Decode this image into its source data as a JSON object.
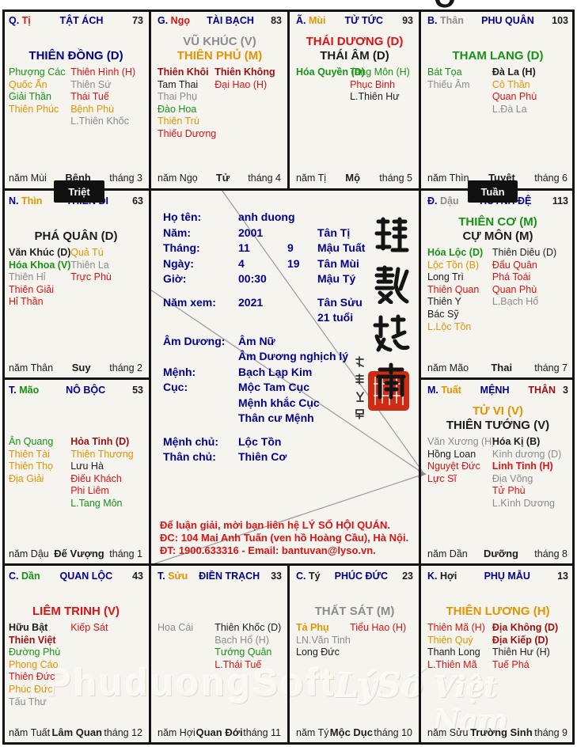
{
  "colors": {
    "navy": "#00008B",
    "red": "#DE1212",
    "darkred": "#9B1010",
    "orange": "#E39400",
    "green": "#169316",
    "gray": "#8C8C8C",
    "black": "#1C1C1C"
  },
  "badges": {
    "triet": "Triệt",
    "tuan": "Tuần"
  },
  "watermarks": {
    "left": "PhuduongSoft",
    "mid": "LýSố",
    "right": "Việt Nam"
  },
  "center": {
    "info_rows": [
      {
        "label": "Họ tên:",
        "value": "anh duong",
        "extra": "",
        "canchi": ""
      },
      {
        "label": "Năm:",
        "value": "2001",
        "extra": "",
        "canchi": "Tân Tị"
      },
      {
        "label": "Tháng:",
        "value": "11",
        "extra": "9",
        "canchi": "Mậu Tuất"
      },
      {
        "label": "Ngày:",
        "value": "4",
        "extra": "19",
        "canchi": "Tân Mùi"
      },
      {
        "label": "Giờ:",
        "value": "00:30",
        "extra": "",
        "canchi": "Mậu Tý"
      },
      {
        "label": "Năm xem:",
        "value": "2021",
        "extra": "",
        "canchi": "Tân Sửu",
        "gap": true
      },
      {
        "label": "",
        "value": "",
        "extra": "",
        "canchi": "21 tuổi"
      },
      {
        "label": "Âm Dương:",
        "value": "Âm Nữ",
        "extra": "",
        "canchi": "",
        "gap": true
      },
      {
        "label": "",
        "value": "Âm Dương nghịch lý",
        "extra": "",
        "canchi": ""
      },
      {
        "label": "Mệnh:",
        "value": "Bạch Lạp Kim",
        "extra": "",
        "canchi": ""
      },
      {
        "label": "Cục:",
        "value": "Mộc Tam Cục",
        "extra": "",
        "canchi": ""
      },
      {
        "label": "",
        "value": "Mệnh khắc Cục",
        "extra": "",
        "canchi": ""
      },
      {
        "label": "",
        "value": "Thân cư Mệnh",
        "extra": "",
        "canchi": ""
      },
      {
        "label": "Mệnh chủ:",
        "value": "Lộc Tồn",
        "extra": "",
        "canchi": "",
        "gap": true
      },
      {
        "label": "Thân chủ:",
        "value": "Thiên Cơ",
        "extra": "",
        "canchi": ""
      }
    ],
    "notice_lines": [
      "Để luận giải, mời bạn liên hệ LÝ SỐ HỘI QUÁN.",
      "ĐC: 104 Mai Anh Tuấn (ven hồ Hoàng Cầu), Hà Nội.",
      "ĐT: 1900.633316 - Email: bantuvan@lyso.vn."
    ],
    "calligraphy_chars": [
      "理",
      "數",
      "越",
      "南"
    ],
    "seal_side_chars": [
      "扶",
      "董",
      "公",
      "司"
    ]
  },
  "palaces": [
    {
      "stem": "Q.",
      "branch": "Tị",
      "branch_color": "red",
      "palace": "TẬT ÁCH",
      "number": "73",
      "main_stars": [
        {
          "t": "THIÊN ĐỒNG (D)",
          "c": "navy"
        }
      ],
      "left": [
        {
          "t": "Phượng Các",
          "c": "green"
        },
        {
          "t": "Quốc Ấn",
          "c": "orange"
        },
        {
          "t": "Giải Thần",
          "c": "green"
        },
        {
          "t": "Thiên Phúc",
          "c": "orange"
        }
      ],
      "right": [
        {
          "t": "Thiên Hình (H)",
          "c": "red"
        },
        {
          "t": "Thiên Sứ",
          "c": "gray"
        },
        {
          "t": "Thái Tuế",
          "c": "red"
        },
        {
          "t": "Bệnh Phù",
          "c": "orange"
        },
        {
          "t": "L.Thiên Khốc",
          "c": "gray"
        }
      ],
      "year": "năm Mùi",
      "state": "Bệnh",
      "month": "tháng 3"
    },
    {
      "stem": "G.",
      "branch": "Ngọ",
      "branch_color": "red",
      "palace": "TÀI BẠCH",
      "number": "83",
      "main_stars": [
        {
          "t": "VŨ KHÚC (V)",
          "c": "gray"
        },
        {
          "t": "THIÊN PHỦ (M)",
          "c": "orange"
        }
      ],
      "left": [
        {
          "t": "Thiên Khôi",
          "c": "darkred",
          "b": 1
        },
        {
          "t": "Tam Thai",
          "c": "black"
        },
        {
          "t": "Thai Phụ",
          "c": "gray"
        },
        {
          "t": "Đào Hoa",
          "c": "green"
        },
        {
          "t": "Thiên Trù",
          "c": "orange"
        },
        {
          "t": "Thiếu Dương",
          "c": "red"
        }
      ],
      "right": [
        {
          "t": "Thiên Không",
          "c": "darkred",
          "b": 1
        },
        {
          "t": "Đại Hao (H)",
          "c": "red"
        }
      ],
      "year": "năm Ngọ",
      "state": "Tử",
      "month": "tháng 4"
    },
    {
      "stem": "Ã.",
      "branch": "Mùi",
      "branch_color": "orange",
      "palace": "TỬ TỨC",
      "number": "93",
      "main_stars": [
        {
          "t": "THÁI DƯƠNG (D)",
          "c": "red"
        },
        {
          "t": "THÁI ÂM (D)",
          "c": "black"
        }
      ],
      "left": [
        {
          "t": "Hóa Quyền (D)",
          "c": "green",
          "b": 1
        }
      ],
      "right": [
        {
          "t": "Tang Môn (H)",
          "c": "green"
        },
        {
          "t": "Phục Binh",
          "c": "red"
        },
        {
          "t": "L.Thiên Hư",
          "c": "black"
        }
      ],
      "year": "năm Tị",
      "state": "Mộ",
      "month": "tháng 5"
    },
    {
      "stem": "B.",
      "branch": "Thân",
      "branch_color": "gray",
      "palace": "PHU QUÂN",
      "number": "103",
      "main_stars": [
        {
          "t": "THAM LANG (D)",
          "c": "green"
        }
      ],
      "left": [
        {
          "t": "Bát Tọa",
          "c": "green"
        },
        {
          "t": "Thiếu Âm",
          "c": "gray"
        }
      ],
      "right": [
        {
          "t": "Đà La (H)",
          "c": "black",
          "b": 1
        },
        {
          "t": "Cô Thần",
          "c": "orange"
        },
        {
          "t": "Quan Phù",
          "c": "red"
        },
        {
          "t": "L.Đà La",
          "c": "gray"
        }
      ],
      "year": "năm Thìn",
      "state": "Tuyệt",
      "month": "tháng 6"
    },
    {
      "stem": "N.",
      "branch": "Thìn",
      "branch_color": "orange",
      "palace": "THIÊN DI",
      "number": "63",
      "main_stars": [
        {
          "t": "PHÁ QUÂN (D)",
          "c": "black"
        }
      ],
      "left": [
        {
          "t": "Văn Khúc (D)",
          "c": "black",
          "b": 1
        },
        {
          "t": "Hóa Khoa (V)",
          "c": "green",
          "b": 1
        },
        {
          "t": "Thiên Hỉ",
          "c": "gray"
        },
        {
          "t": "Thiên Giải",
          "c": "red"
        },
        {
          "t": "Hỉ Thần",
          "c": "red"
        }
      ],
      "right": [
        {
          "t": "Quả Tú",
          "c": "orange"
        },
        {
          "t": "Thiên La",
          "c": "gray"
        },
        {
          "t": "Trực Phù",
          "c": "red"
        }
      ],
      "year": "năm Thân",
      "state": "Suy",
      "month": "tháng 2"
    },
    {
      "stem": "Đ.",
      "branch": "Dậu",
      "branch_color": "gray",
      "palace": "HUYNH ĐỆ",
      "number": "113",
      "main_stars": [
        {
          "t": "THIÊN CƠ (M)",
          "c": "green"
        },
        {
          "t": "CỰ MÔN (M)",
          "c": "black"
        }
      ],
      "left": [
        {
          "t": "Hóa Lộc (D)",
          "c": "green",
          "b": 1
        },
        {
          "t": "Lộc Tồn (B)",
          "c": "orange"
        },
        {
          "t": "Long Trì",
          "c": "black"
        },
        {
          "t": "Thiên Quan",
          "c": "red"
        },
        {
          "t": "Thiên Y",
          "c": "black"
        },
        {
          "t": "Bác Sỹ",
          "c": "black"
        },
        {
          "t": "L.Lộc Tồn",
          "c": "orange"
        }
      ],
      "right": [
        {
          "t": "Thiên Diêu (D)",
          "c": "black"
        },
        {
          "t": "Đẩu Quân",
          "c": "red"
        },
        {
          "t": "Phá Toái",
          "c": "red"
        },
        {
          "t": "Quan Phù",
          "c": "red"
        },
        {
          "t": "L.Bạch Hổ",
          "c": "gray"
        }
      ],
      "year": "năm Mão",
      "state": "Thai",
      "month": "tháng 7"
    },
    {
      "stem": "T.",
      "branch": "Mão",
      "branch_color": "green",
      "palace": "NÔ BỘC",
      "number": "53",
      "main_stars": [],
      "left": [
        {
          "t": "Ân Quang",
          "c": "green"
        },
        {
          "t": "Thiên Tài",
          "c": "orange"
        },
        {
          "t": "Thiên Thọ",
          "c": "orange"
        },
        {
          "t": "Địa Giải",
          "c": "orange"
        }
      ],
      "right": [
        {
          "t": "Hỏa Tinh (D)",
          "c": "darkred",
          "b": 1
        },
        {
          "t": "Thiên Thương",
          "c": "orange"
        },
        {
          "t": "Lưu Hà",
          "c": "black"
        },
        {
          "t": "Điếu Khách",
          "c": "red"
        },
        {
          "t": "Phi Liêm",
          "c": "red"
        },
        {
          "t": "L.Tang Môn",
          "c": "green"
        }
      ],
      "year": "năm Dậu",
      "state": "Đế Vượng",
      "month": "tháng 1"
    },
    {
      "stem": "M.",
      "branch": "Tuất",
      "branch_color": "orange",
      "palace": "MỆNH",
      "palace2": "THÂN",
      "number": "3",
      "main_stars": [
        {
          "t": "TỬ VI (V)",
          "c": "orange"
        },
        {
          "t": "THIÊN TƯỚNG (V)",
          "c": "black"
        }
      ],
      "left": [
        {
          "t": "Văn Xương (H)",
          "c": "gray"
        },
        {
          "t": "Hồng Loan",
          "c": "black"
        },
        {
          "t": "Nguyệt Đức",
          "c": "red"
        },
        {
          "t": "Lực Sĩ",
          "c": "red"
        }
      ],
      "right": [
        {
          "t": "Hóa Kị (B)",
          "c": "black",
          "b": 1
        },
        {
          "t": "Kình dương (D)",
          "c": "gray"
        },
        {
          "t": "Linh Tinh (H)",
          "c": "red",
          "b": 1
        },
        {
          "t": "Địa Võng",
          "c": "gray"
        },
        {
          "t": "Tử Phù",
          "c": "red"
        },
        {
          "t": "L.Kình Dương",
          "c": "gray"
        }
      ],
      "year": "năm Dần",
      "state": "Dưỡng",
      "month": "tháng 8"
    },
    {
      "stem": "C.",
      "branch": "Dần",
      "branch_color": "green",
      "palace": "QUAN LỘC",
      "number": "43",
      "main_stars": [
        {
          "t": "LIÊM TRINH (V)",
          "c": "red"
        }
      ],
      "left": [
        {
          "t": "Hữu Bật",
          "c": "black",
          "b": 1
        },
        {
          "t": "Thiên Việt",
          "c": "darkred",
          "b": 1
        },
        {
          "t": "Đường Phù",
          "c": "green"
        },
        {
          "t": "Phong Cáo",
          "c": "orange"
        },
        {
          "t": "Thiên Đức",
          "c": "red"
        },
        {
          "t": "Phúc Đức",
          "c": "orange"
        },
        {
          "t": "Tấu Thư",
          "c": "gray"
        }
      ],
      "right": [
        {
          "t": "Kiếp Sát",
          "c": "red"
        }
      ],
      "year": "năm Tuất",
      "state": "Lâm Quan",
      "month": "tháng 12"
    },
    {
      "stem": "T.",
      "branch": "Sửu",
      "branch_color": "orange",
      "palace": "ĐIỀN TRẠCH",
      "number": "33",
      "main_stars": [],
      "left": [
        {
          "t": "Hoa Cái",
          "c": "gray"
        }
      ],
      "right": [
        {
          "t": "Thiên Khốc (D)",
          "c": "black"
        },
        {
          "t": "Bạch Hổ (H)",
          "c": "gray"
        },
        {
          "t": "Tướng Quân",
          "c": "green"
        },
        {
          "t": "L.Thái Tuế",
          "c": "red"
        }
      ],
      "year": "năm Hợi",
      "state": "Quan Đới",
      "month": "tháng 11"
    },
    {
      "stem": "C.",
      "branch": "Tý",
      "branch_color": "black",
      "palace": "PHÚC ĐỨC",
      "number": "23",
      "main_stars": [
        {
          "t": "THẤT SÁT (M)",
          "c": "gray"
        }
      ],
      "left": [
        {
          "t": "Tả Phụ",
          "c": "orange",
          "b": 1
        },
        {
          "t": "LN.Văn Tinh",
          "c": "gray"
        },
        {
          "t": "Long Đức",
          "c": "black"
        }
      ],
      "right": [
        {
          "t": "Tiểu Hao (H)",
          "c": "red"
        }
      ],
      "year": "năm Tý",
      "state": "Mộc Dục",
      "month": "tháng 10"
    },
    {
      "stem": "K.",
      "branch": "Hợi",
      "branch_color": "black",
      "palace": "PHỤ MẪU",
      "number": "13",
      "main_stars": [
        {
          "t": "THIÊN LƯƠNG (H)",
          "c": "orange"
        }
      ],
      "left": [
        {
          "t": "Thiên Mã (H)",
          "c": "red"
        },
        {
          "t": "Thiên Quý",
          "c": "orange"
        },
        {
          "t": "Thanh Long",
          "c": "black"
        },
        {
          "t": "L.Thiên Mã",
          "c": "red"
        }
      ],
      "right": [
        {
          "t": "Địa Không (D)",
          "c": "darkred",
          "b": 1
        },
        {
          "t": "Địa Kiếp (D)",
          "c": "darkred",
          "b": 1
        },
        {
          "t": "Thiên Hư (H)",
          "c": "black"
        },
        {
          "t": "Tuế Phá",
          "c": "red"
        }
      ],
      "year": "năm Sửu",
      "state": "Trường Sinh",
      "month": "tháng 9"
    }
  ]
}
